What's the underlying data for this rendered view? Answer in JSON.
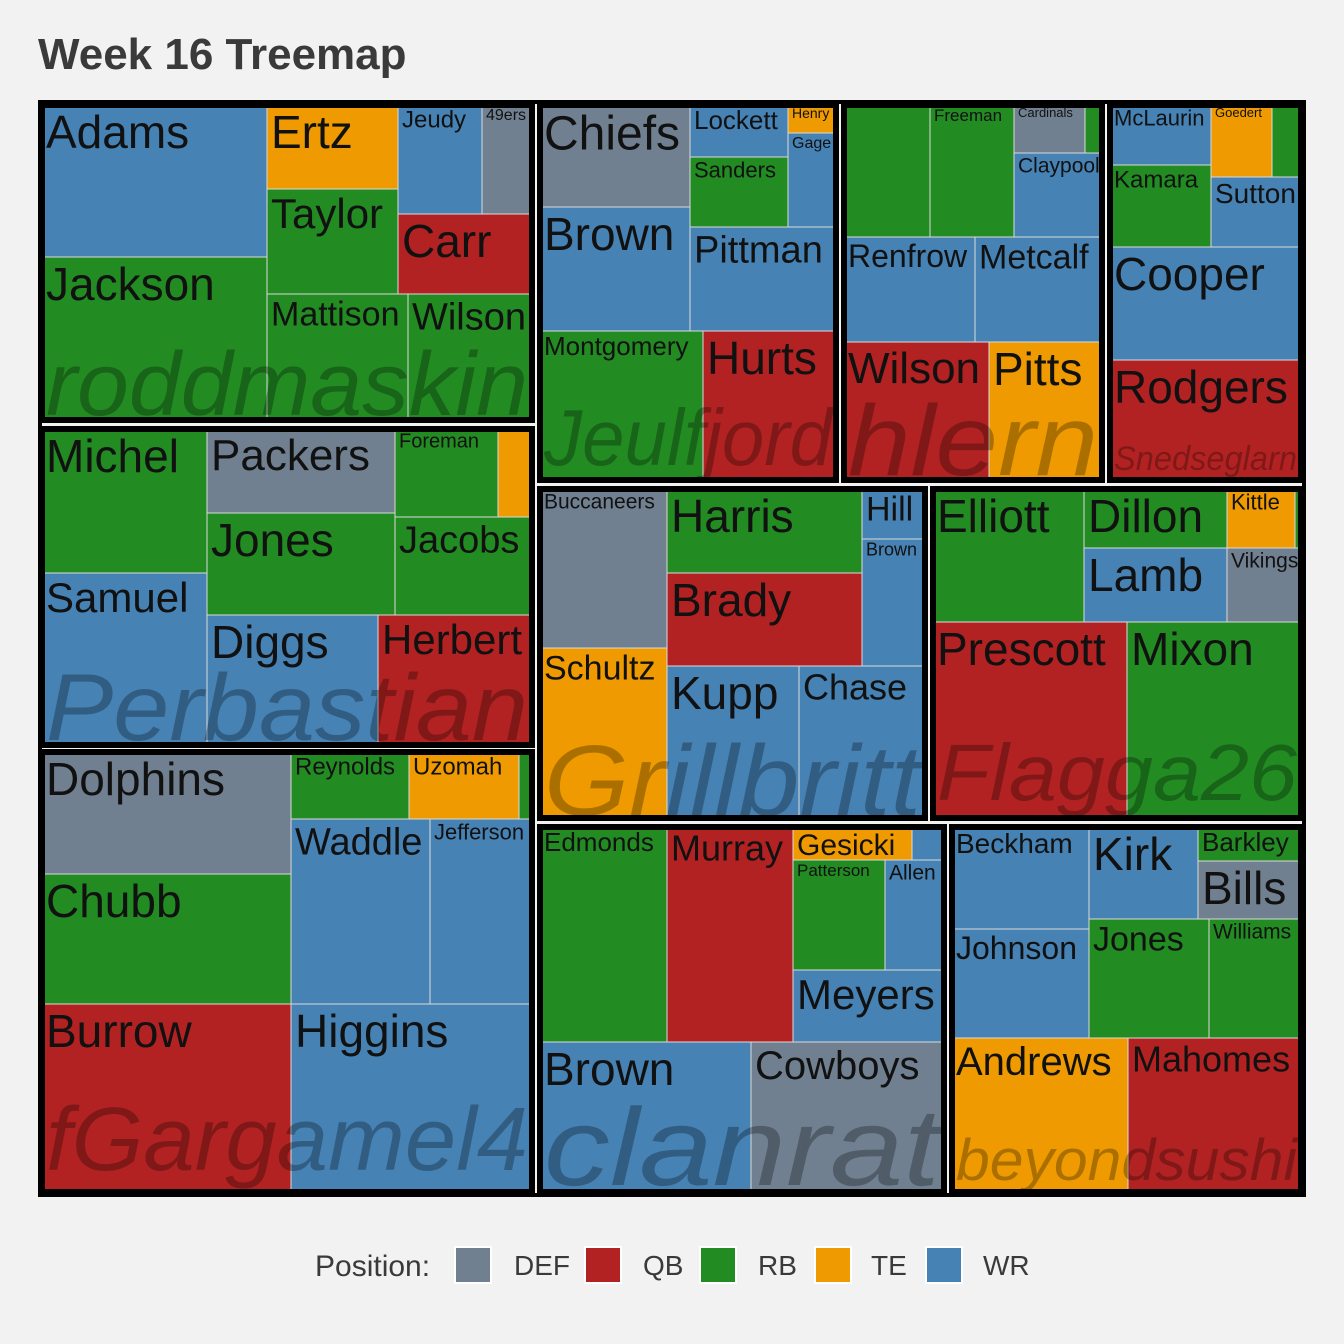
{
  "title": "Week 16 Treemap",
  "colors": {
    "DEF": "#708090",
    "QB": "#b22222",
    "RB": "#228b22",
    "TE": "#ee9a00",
    "WR": "#4682b4"
  },
  "legend": {
    "title": "Position:",
    "entries": [
      "DEF",
      "QB",
      "RB",
      "TE",
      "WR"
    ]
  },
  "chart_data": {
    "type": "treemap",
    "title": "Week 16 Treemap",
    "legend_title": "Position:",
    "legend_position": "bottom",
    "groups": [
      {
        "name": "roddmaskin",
        "players": [
          {
            "name": "Adams",
            "position": "WR"
          },
          {
            "name": "Jackson",
            "position": "RB"
          },
          {
            "name": "Ertz",
            "position": "TE"
          },
          {
            "name": "Jeudy",
            "position": "WR"
          },
          {
            "name": "49ers",
            "position": "DEF"
          },
          {
            "name": "Taylor",
            "position": "RB"
          },
          {
            "name": "Carr",
            "position": "QB"
          },
          {
            "name": "Mattison",
            "position": "RB"
          },
          {
            "name": "Wilson",
            "position": "RB"
          }
        ]
      },
      {
        "name": "Perbastian",
        "players": [
          {
            "name": "Michel",
            "position": "RB"
          },
          {
            "name": "Samuel",
            "position": "WR"
          },
          {
            "name": "Packers",
            "position": "DEF"
          },
          {
            "name": "Foreman",
            "position": "RB"
          },
          {
            "name": "",
            "position": "TE"
          },
          {
            "name": "Jones",
            "position": "RB"
          },
          {
            "name": "Jacobs",
            "position": "RB"
          },
          {
            "name": "Diggs",
            "position": "WR"
          },
          {
            "name": "Herbert",
            "position": "QB"
          }
        ]
      },
      {
        "name": "fGargamel4",
        "players": [
          {
            "name": "Dolphins",
            "position": "DEF"
          },
          {
            "name": "Chubb",
            "position": "RB"
          },
          {
            "name": "Burrow",
            "position": "QB"
          },
          {
            "name": "Reynolds",
            "position": "RB"
          },
          {
            "name": "Uzomah",
            "position": "TE"
          },
          {
            "name": "",
            "position": "RB"
          },
          {
            "name": "Waddle",
            "position": "WR"
          },
          {
            "name": "Jefferson",
            "position": "WR"
          },
          {
            "name": "Higgins",
            "position": "WR"
          }
        ]
      },
      {
        "name": "Jeulfjord",
        "players": [
          {
            "name": "Chiefs",
            "position": "DEF"
          },
          {
            "name": "Lockett",
            "position": "WR"
          },
          {
            "name": "Henry",
            "position": "TE"
          },
          {
            "name": "Sanders",
            "position": "RB"
          },
          {
            "name": "Gage",
            "position": "WR"
          },
          {
            "name": "Brown",
            "position": "WR"
          },
          {
            "name": "Pittman",
            "position": "WR"
          },
          {
            "name": "Montgomery",
            "position": "RB"
          },
          {
            "name": "Hurts",
            "position": "QB"
          }
        ]
      },
      {
        "name": "hlern",
        "players": [
          {
            "name": "",
            "position": "RB"
          },
          {
            "name": "Freeman",
            "position": "RB"
          },
          {
            "name": "Cardinals",
            "position": "DEF"
          },
          {
            "name": "",
            "position": "RB"
          },
          {
            "name": "Claypool",
            "position": "WR"
          },
          {
            "name": "Renfrow",
            "position": "WR"
          },
          {
            "name": "Metcalf",
            "position": "WR"
          },
          {
            "name": "Wilson",
            "position": "QB"
          },
          {
            "name": "Pitts",
            "position": "TE"
          }
        ]
      },
      {
        "name": "Snedseglarn",
        "players": [
          {
            "name": "McLaurin",
            "position": "WR"
          },
          {
            "name": "Kamara",
            "position": "RB"
          },
          {
            "name": "Goedert",
            "position": "TE"
          },
          {
            "name": "",
            "position": "RB"
          },
          {
            "name": "Sutton",
            "position": "WR"
          },
          {
            "name": "Cooper",
            "position": "WR"
          },
          {
            "name": "Rodgers",
            "position": "QB"
          }
        ]
      },
      {
        "name": "Grillbritt",
        "players": [
          {
            "name": "Buccaneers",
            "position": "DEF"
          },
          {
            "name": "Schultz",
            "position": "TE"
          },
          {
            "name": "Harris",
            "position": "RB"
          },
          {
            "name": "Hill",
            "position": "WR"
          },
          {
            "name": "Brady",
            "position": "QB"
          },
          {
            "name": "Brown",
            "position": "WR"
          },
          {
            "name": "Kupp",
            "position": "WR"
          },
          {
            "name": "Chase",
            "position": "WR"
          }
        ]
      },
      {
        "name": "Flagga26",
        "players": [
          {
            "name": "Elliott",
            "position": "RB"
          },
          {
            "name": "Dillon",
            "position": "RB"
          },
          {
            "name": "Kittle",
            "position": "TE"
          },
          {
            "name": "",
            "position": "RB"
          },
          {
            "name": "Lamb",
            "position": "WR"
          },
          {
            "name": "Vikings",
            "position": "DEF"
          },
          {
            "name": "Prescott",
            "position": "QB"
          },
          {
            "name": "Mixon",
            "position": "RB"
          }
        ]
      },
      {
        "name": "clanrat",
        "players": [
          {
            "name": "Edmonds",
            "position": "RB"
          },
          {
            "name": "Murray",
            "position": "QB"
          },
          {
            "name": "Gesicki",
            "position": "TE"
          },
          {
            "name": "",
            "position": "WR"
          },
          {
            "name": "Patterson",
            "position": "RB"
          },
          {
            "name": "Allen",
            "position": "WR"
          },
          {
            "name": "Meyers",
            "position": "WR"
          },
          {
            "name": "Brown",
            "position": "WR"
          },
          {
            "name": "Cowboys",
            "position": "DEF"
          }
        ]
      },
      {
        "name": "beyondsushi",
        "players": [
          {
            "name": "Beckham",
            "position": "WR"
          },
          {
            "name": "Johnson",
            "position": "WR"
          },
          {
            "name": "Kirk",
            "position": "WR"
          },
          {
            "name": "Barkley",
            "position": "RB"
          },
          {
            "name": "Bills",
            "position": "DEF"
          },
          {
            "name": "Jones",
            "position": "RB"
          },
          {
            "name": "Williams",
            "position": "RB"
          },
          {
            "name": "Andrews",
            "position": "TE"
          },
          {
            "name": "Mahomes",
            "position": "QB"
          }
        ]
      }
    ]
  }
}
